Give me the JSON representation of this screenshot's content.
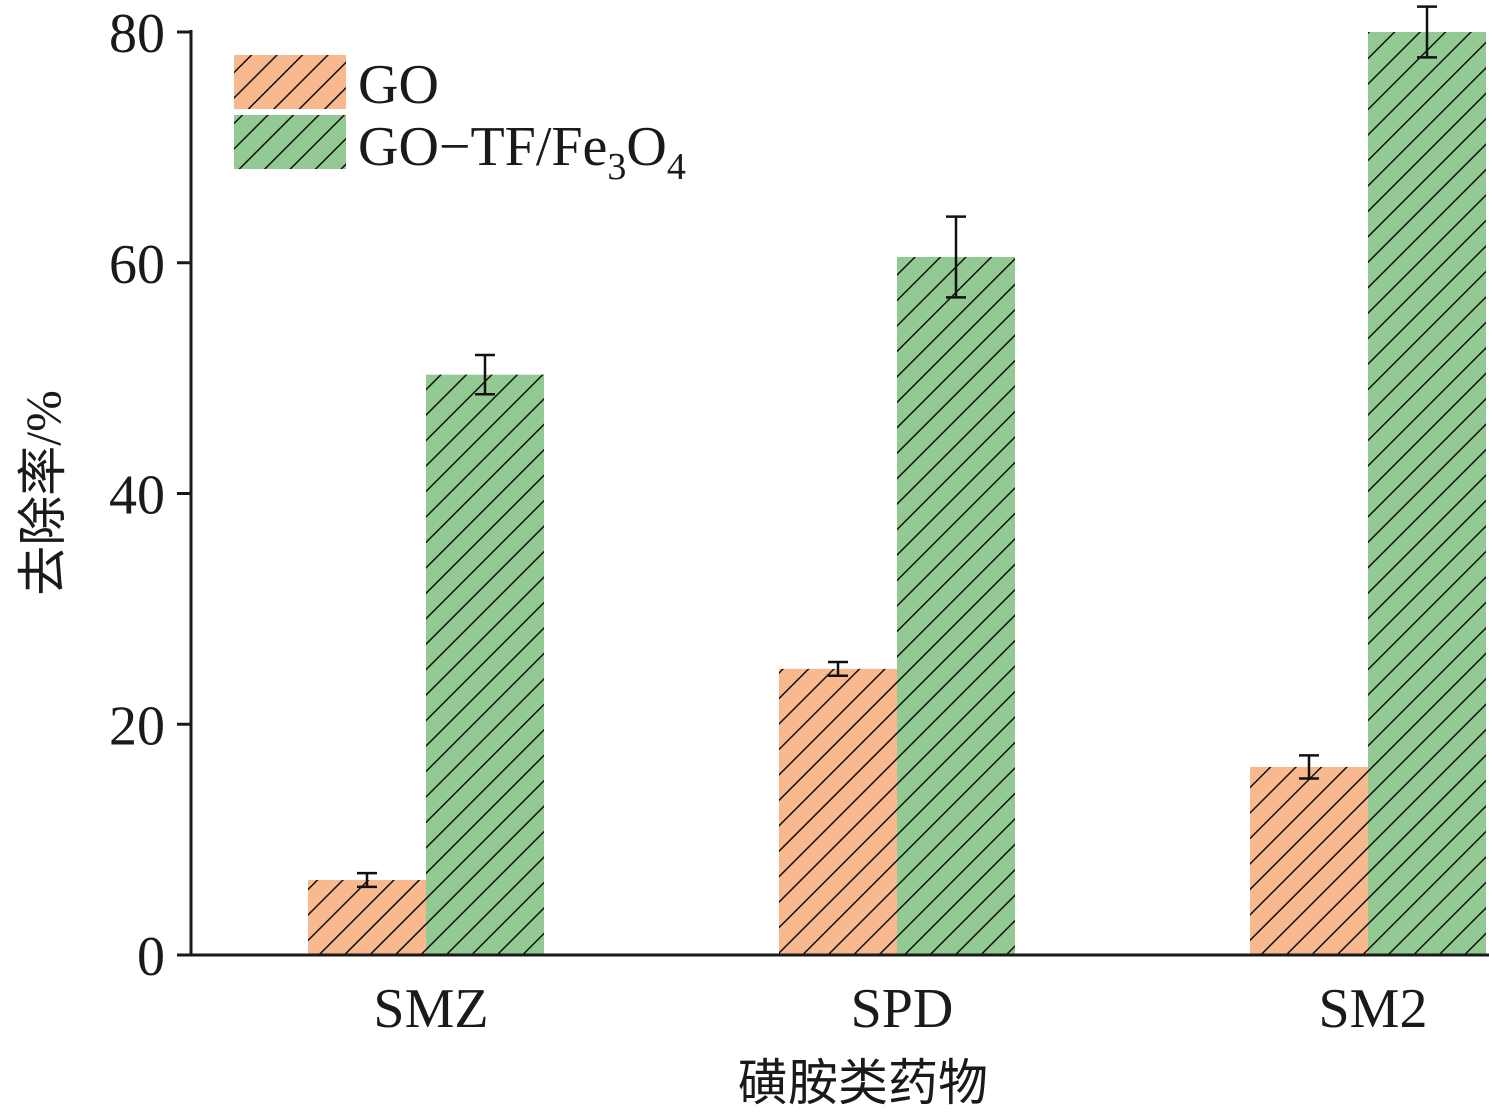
{
  "colors": {
    "GO": "#f9b98f",
    "GO-TF/Fe3O4": "#93c993",
    "hatch": "#111111",
    "axis": "#1a1a1a"
  },
  "chart_data": {
    "type": "bar",
    "title": "",
    "xlabel": "磺胺类药物",
    "ylabel": "去除率/%",
    "ylim": [
      0,
      80
    ],
    "yticks": [
      0,
      20,
      40,
      60,
      80
    ],
    "categories": [
      "SMZ",
      "SPD",
      "SM2"
    ],
    "legend_position": "top-left",
    "hatch": "diagonal",
    "grid": false,
    "series": [
      {
        "name": "GO",
        "legend_main": "GO",
        "values": [
          6.5,
          24.8,
          16.3
        ],
        "errors": [
          0.6,
          0.6,
          1.0
        ]
      },
      {
        "name": "GO-TF/Fe3O4",
        "legend_main": "GO−TF/Fe",
        "legend_sub1": "3",
        "legend_mid": "O",
        "legend_sub2": "4",
        "values": [
          50.3,
          60.5,
          80.0
        ],
        "errors": [
          1.7,
          3.5,
          2.2
        ]
      }
    ]
  }
}
